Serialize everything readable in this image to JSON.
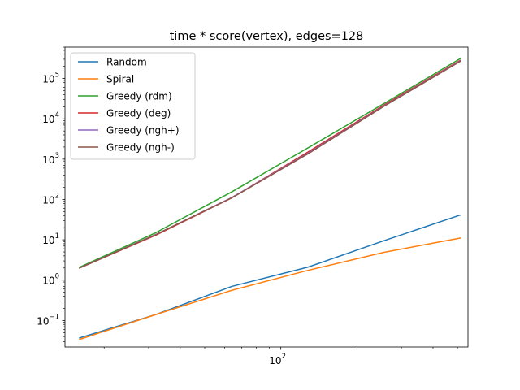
{
  "chart_data": {
    "type": "line",
    "title": "time * score(vertex), edges=128",
    "xlabel": "",
    "ylabel": "",
    "xscale": "log",
    "yscale": "log",
    "xlim": [
      14,
      550
    ],
    "ylim": [
      0.022,
      600000
    ],
    "x_major_ticks": [
      {
        "value": 100,
        "base": "10",
        "exp": "2"
      }
    ],
    "x_minor_ticks": [
      20,
      30,
      40,
      50,
      60,
      70,
      80,
      90,
      200,
      300,
      400,
      500
    ],
    "y_major_ticks": [
      {
        "value": 0.1,
        "base": "10",
        "exp": "−1"
      },
      {
        "value": 1,
        "base": "10",
        "exp": "0"
      },
      {
        "value": 10,
        "base": "10",
        "exp": "1"
      },
      {
        "value": 100,
        "base": "10",
        "exp": "2"
      },
      {
        "value": 1000,
        "base": "10",
        "exp": "3"
      },
      {
        "value": 10000,
        "base": "10",
        "exp": "4"
      },
      {
        "value": 100000,
        "base": "10",
        "exp": "5"
      }
    ],
    "grid": false,
    "legend_position": "top-left",
    "x": [
      16,
      32,
      64,
      128,
      256,
      512
    ],
    "series": [
      {
        "name": "Random",
        "color": "#1f77b4",
        "values": [
          0.037,
          0.14,
          0.7,
          2.1,
          9.5,
          41
        ]
      },
      {
        "name": "Spiral",
        "color": "#ff7f0e",
        "values": [
          0.034,
          0.14,
          0.56,
          1.75,
          4.9,
          11
        ]
      },
      {
        "name": "Greedy (rdm)",
        "color": "#2ca02c",
        "values": [
          2.1,
          15,
          155,
          1900,
          24000,
          310000
        ]
      },
      {
        "name": "Greedy (deg)",
        "color": "#d62728",
        "values": [
          2.0,
          13,
          110,
          1500,
          22000,
          280000
        ]
      },
      {
        "name": "Greedy (ngh+)",
        "color": "#9467bd",
        "values": [
          2.0,
          13.5,
          112,
          1400,
          21000,
          270000
        ]
      },
      {
        "name": "Greedy (ngh-)",
        "color": "#8c564b",
        "values": [
          2.0,
          13.5,
          110,
          1350,
          20500,
          265000
        ]
      }
    ]
  }
}
